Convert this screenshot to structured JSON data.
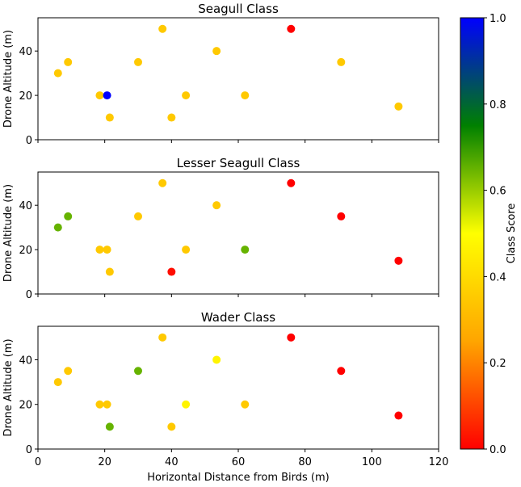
{
  "chart_data": {
    "type": "scatter",
    "shared_x": [
      6,
      9,
      18.5,
      20.7,
      21.5,
      30,
      37.3,
      40,
      44.3,
      53.5,
      62,
      75.8,
      90.8,
      108
    ],
    "shared_y": [
      30,
      35,
      20,
      20,
      10,
      35,
      50,
      10,
      20,
      40,
      20,
      50,
      35,
      15
    ],
    "xlabel": "Horizontal Distance from Birds (m)",
    "ylabel": "Drone Altitude (m)",
    "xlim": [
      0,
      120
    ],
    "ylim": [
      0,
      55
    ],
    "xticks": [
      "0",
      "20",
      "40",
      "60",
      "80",
      "100",
      "120"
    ],
    "yticks": [
      "0",
      "20",
      "40"
    ],
    "grid": false,
    "panels": [
      {
        "title": "Seagull Class",
        "scores": [
          0.35,
          0.35,
          0.35,
          1.0,
          0.35,
          0.35,
          0.35,
          0.35,
          0.35,
          0.35,
          0.35,
          0.0,
          0.35,
          0.35
        ]
      },
      {
        "title": "Lesser Seagull Class",
        "scores": [
          0.65,
          0.65,
          0.35,
          0.35,
          0.35,
          0.35,
          0.35,
          0.02,
          0.35,
          0.35,
          0.65,
          0.0,
          0.0,
          0.0
        ]
      },
      {
        "title": "Wader Class",
        "scores": [
          0.35,
          0.35,
          0.35,
          0.35,
          0.65,
          0.65,
          0.35,
          0.35,
          0.47,
          0.47,
          0.35,
          0.0,
          0.0,
          0.0
        ]
      }
    ],
    "colorbar": {
      "label": "Class Score",
      "range": [
        0,
        1
      ],
      "ticks": [
        "0.0",
        "0.2",
        "0.4",
        "0.6",
        "0.8",
        "1.0"
      ],
      "colormap_stops": [
        {
          "v": 0.0,
          "color": "#ff0000"
        },
        {
          "v": 0.25,
          "color": "#ffa500"
        },
        {
          "v": 0.5,
          "color": "#ffff00"
        },
        {
          "v": 0.75,
          "color": "#008000"
        },
        {
          "v": 1.0,
          "color": "#0000ff"
        }
      ]
    }
  }
}
